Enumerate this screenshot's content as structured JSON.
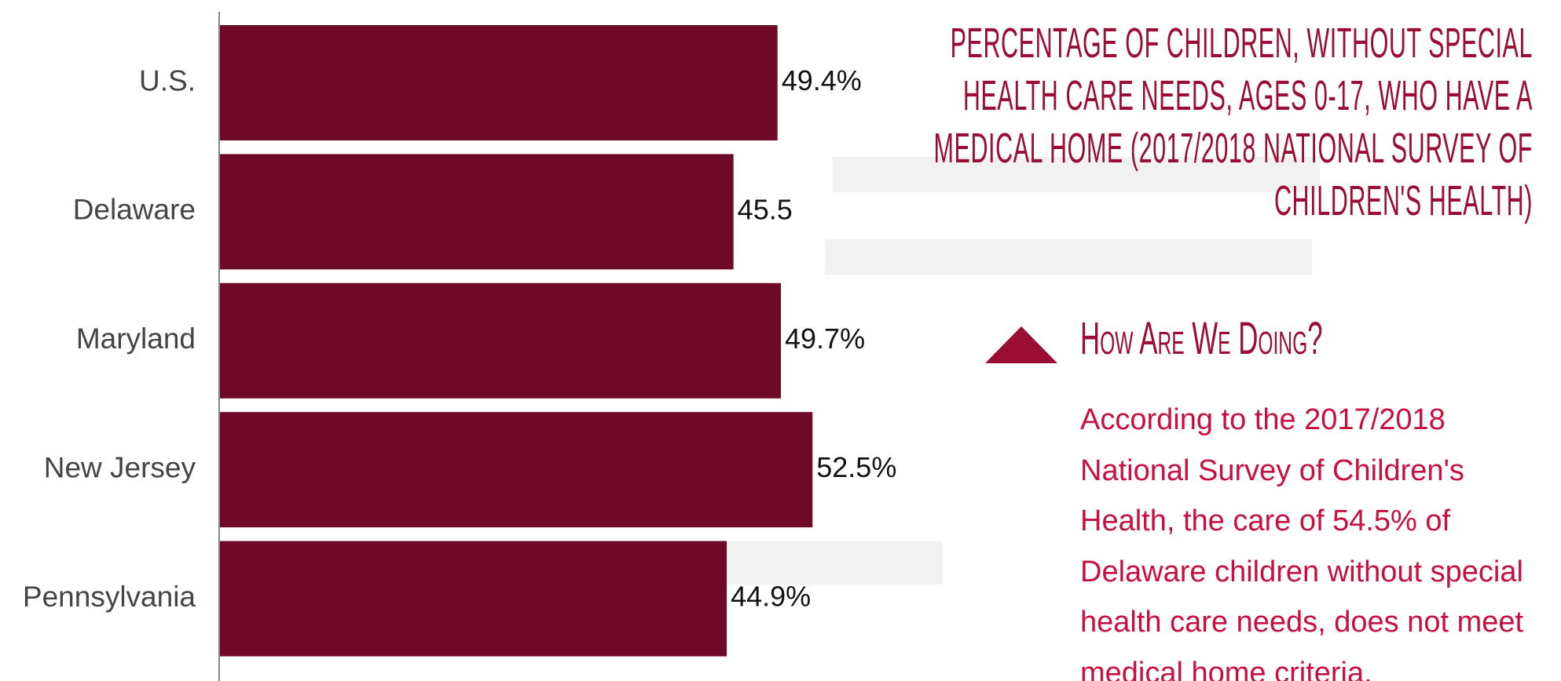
{
  "chart_data": {
    "type": "bar",
    "orientation": "horizontal",
    "title": "PERCENTAGE OF CHILDREN, WITHOUT SPECIAL HEALTH CARE NEEDS, AGES 0-17, WHO HAVE A MEDICAL HOME (2017/2018 NATIONAL SURVEY OF CHILDREN'S HEALTH)",
    "categories": [
      "U.S.",
      "Delaware",
      "Maryland",
      "New Jersey",
      "Pennsylvania"
    ],
    "values": [
      49.4,
      45.5,
      49.7,
      52.5,
      44.9
    ],
    "value_labels": [
      "49.4%",
      "45.5",
      "49.7%",
      "52.5%",
      "44.9%"
    ],
    "color": "#6e0a28",
    "xlim": [
      0,
      60
    ]
  },
  "sidebar": {
    "heading": "How Are We Doing?",
    "text": "According to the 2017/2018 National Survey of Children's Health, the care of 54.5% of Delaware children without special health care needs, does not meet medical home criteria."
  }
}
